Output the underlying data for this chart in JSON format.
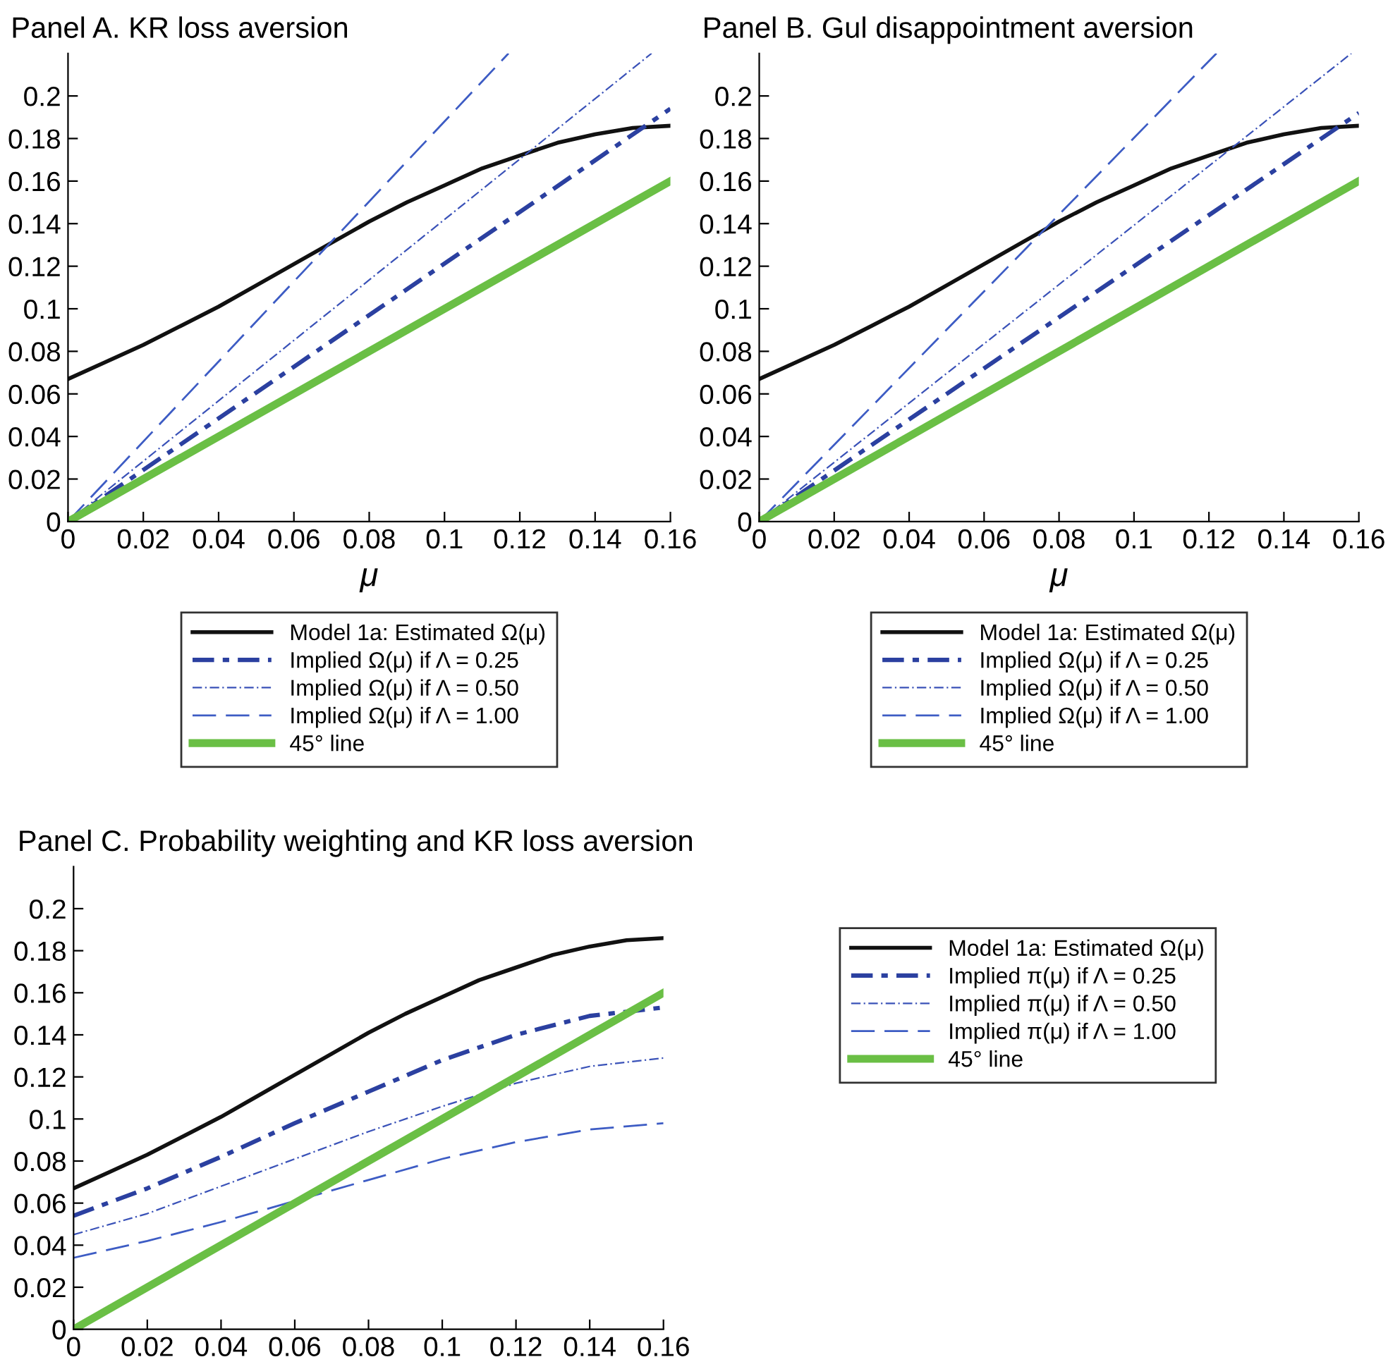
{
  "chart_data": [
    {
      "type": "line",
      "title": "Panel A. KR loss aversion",
      "xlabel": "μ",
      "xlim": [
        0,
        0.16
      ],
      "ylim": [
        0,
        0.22
      ],
      "xticks": [
        0,
        0.02,
        0.04,
        0.06,
        0.08,
        0.1,
        0.12,
        0.14,
        0.16
      ],
      "yticks": [
        0,
        0.02,
        0.04,
        0.06,
        0.08,
        0.1,
        0.12,
        0.14,
        0.16,
        0.18,
        0.2
      ],
      "grid": false,
      "legend": "bottom",
      "series": [
        {
          "name": "Model 1a: Estimated Ω(μ)",
          "color": "#111111",
          "line_style": "solid",
          "x": [
            0,
            0.01,
            0.02,
            0.03,
            0.04,
            0.05,
            0.06,
            0.07,
            0.08,
            0.09,
            0.1,
            0.11,
            0.12,
            0.13,
            0.14,
            0.15,
            0.16
          ],
          "values": [
            0.067,
            0.075,
            0.083,
            0.092,
            0.101,
            0.111,
            0.121,
            0.131,
            0.141,
            0.15,
            0.158,
            0.166,
            0.172,
            0.178,
            0.182,
            0.185,
            0.186
          ]
        },
        {
          "name": "Implied Ω(μ) if Λ = 0.25",
          "color": "#2b40a0",
          "line_style": "dashdot_thick",
          "x": [
            0,
            0.16
          ],
          "values": [
            0,
            0.194
          ]
        },
        {
          "name": "Implied Ω(μ) if Λ = 0.50",
          "color": "#3a52b8",
          "line_style": "dashdot",
          "x": [
            0,
            0.155
          ],
          "values": [
            0,
            0.22
          ]
        },
        {
          "name": "Implied Ω(μ) if Λ = 1.00",
          "color": "#3d5cc4",
          "line_style": "dashed",
          "x": [
            0,
            0.117
          ],
          "values": [
            0,
            0.22
          ]
        },
        {
          "name": "45° line",
          "color": "#6abf45",
          "line_style": "solid",
          "x": [
            0,
            0.16
          ],
          "values": [
            0,
            0.16
          ]
        }
      ]
    },
    {
      "type": "line",
      "title": "Panel B. Gul disappointment aversion",
      "xlabel": "μ",
      "xlim": [
        0,
        0.16
      ],
      "ylim": [
        0,
        0.22
      ],
      "xticks": [
        0,
        0.02,
        0.04,
        0.06,
        0.08,
        0.1,
        0.12,
        0.14,
        0.16
      ],
      "yticks": [
        0,
        0.02,
        0.04,
        0.06,
        0.08,
        0.1,
        0.12,
        0.14,
        0.16,
        0.18,
        0.2
      ],
      "grid": false,
      "legend": "bottom",
      "series": [
        {
          "name": "Model 1a: Estimated Ω(μ)",
          "color": "#111111",
          "line_style": "solid",
          "x": [
            0,
            0.01,
            0.02,
            0.03,
            0.04,
            0.05,
            0.06,
            0.07,
            0.08,
            0.09,
            0.1,
            0.11,
            0.12,
            0.13,
            0.14,
            0.15,
            0.16
          ],
          "values": [
            0.067,
            0.075,
            0.083,
            0.092,
            0.101,
            0.111,
            0.121,
            0.131,
            0.141,
            0.15,
            0.158,
            0.166,
            0.172,
            0.178,
            0.182,
            0.185,
            0.186
          ]
        },
        {
          "name": "Implied Ω(μ) if Λ = 0.25",
          "color": "#2b40a0",
          "line_style": "dashdot_thick",
          "x": [
            0,
            0.16
          ],
          "values": [
            0,
            0.192
          ]
        },
        {
          "name": "Implied Ω(μ) if Λ = 0.50",
          "color": "#3a52b8",
          "line_style": "dashdot",
          "x": [
            0,
            0.158
          ],
          "values": [
            0,
            0.22
          ]
        },
        {
          "name": "Implied Ω(μ) if Λ = 1.00",
          "color": "#3d5cc4",
          "line_style": "dashed",
          "x": [
            0,
            0.122
          ],
          "values": [
            0,
            0.22
          ]
        },
        {
          "name": "45° line",
          "color": "#6abf45",
          "line_style": "solid",
          "x": [
            0,
            0.16
          ],
          "values": [
            0,
            0.16
          ]
        }
      ]
    },
    {
      "type": "line",
      "title": "Panel C. Probability weighting and KR loss aversion",
      "xlim": [
        0,
        0.16
      ],
      "ylim": [
        0,
        0.22
      ],
      "xticks": [
        0,
        0.02,
        0.04,
        0.06,
        0.08,
        0.1,
        0.12,
        0.14,
        0.16
      ],
      "yticks": [
        0,
        0.02,
        0.04,
        0.06,
        0.08,
        0.1,
        0.12,
        0.14,
        0.16,
        0.18,
        0.2
      ],
      "grid": false,
      "legend": "right",
      "series": [
        {
          "name": "Model 1a: Estimated Ω(μ)",
          "color": "#111111",
          "line_style": "solid",
          "x": [
            0,
            0.01,
            0.02,
            0.03,
            0.04,
            0.05,
            0.06,
            0.07,
            0.08,
            0.09,
            0.1,
            0.11,
            0.12,
            0.13,
            0.14,
            0.15,
            0.16
          ],
          "values": [
            0.067,
            0.075,
            0.083,
            0.092,
            0.101,
            0.111,
            0.121,
            0.131,
            0.141,
            0.15,
            0.158,
            0.166,
            0.172,
            0.178,
            0.182,
            0.185,
            0.186
          ]
        },
        {
          "name": "Implied π(μ) if Λ = 0.25",
          "color": "#2b40a0",
          "line_style": "dashdot_thick",
          "x": [
            0,
            0.02,
            0.04,
            0.06,
            0.08,
            0.1,
            0.12,
            0.14,
            0.16
          ],
          "values": [
            0.054,
            0.067,
            0.082,
            0.098,
            0.113,
            0.128,
            0.14,
            0.149,
            0.153
          ]
        },
        {
          "name": "Implied π(μ) if Λ = 0.50",
          "color": "#3a52b8",
          "line_style": "dashdot",
          "x": [
            0,
            0.02,
            0.04,
            0.06,
            0.08,
            0.1,
            0.12,
            0.14,
            0.16
          ],
          "values": [
            0.045,
            0.055,
            0.068,
            0.081,
            0.094,
            0.106,
            0.117,
            0.125,
            0.129
          ]
        },
        {
          "name": "Implied π(μ) if Λ = 1.00",
          "color": "#3d5cc4",
          "line_style": "dashed",
          "x": [
            0,
            0.02,
            0.04,
            0.06,
            0.08,
            0.1,
            0.12,
            0.14,
            0.16
          ],
          "values": [
            0.034,
            0.042,
            0.051,
            0.061,
            0.071,
            0.081,
            0.089,
            0.095,
            0.098
          ]
        },
        {
          "name": "45° line",
          "color": "#6abf45",
          "line_style": "solid",
          "x": [
            0,
            0.16
          ],
          "values": [
            0,
            0.16
          ]
        }
      ]
    }
  ]
}
